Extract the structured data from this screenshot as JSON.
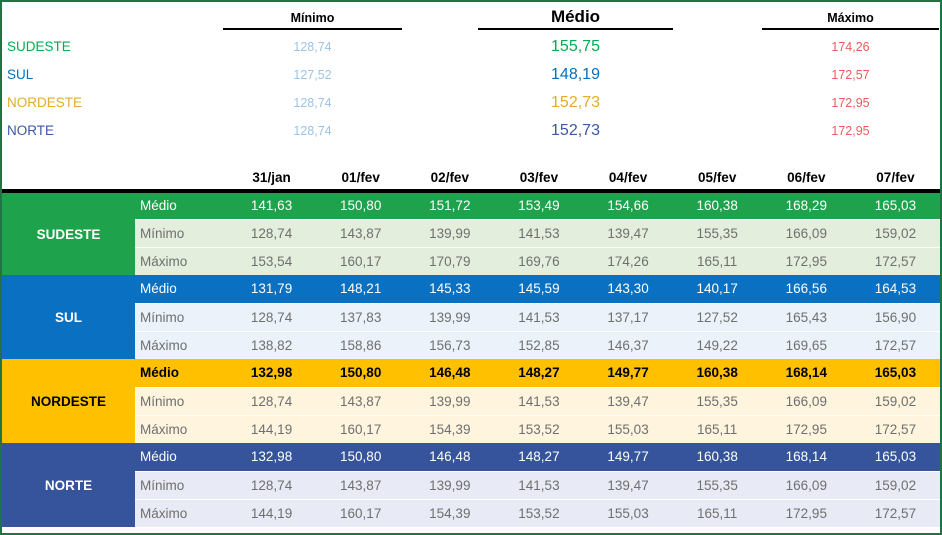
{
  "summary": {
    "headers": {
      "minimo": "Mínimo",
      "medio": "Médio",
      "maximo": "Máximo"
    },
    "rows": [
      {
        "region": "SUDESTE",
        "minimo": "128,74",
        "medio": "155,75",
        "maximo": "174,26"
      },
      {
        "region": "SUL",
        "minimo": "127,52",
        "medio": "148,19",
        "maximo": "172,57"
      },
      {
        "region": "NORDESTE",
        "minimo": "128,74",
        "medio": "152,73",
        "maximo": "172,95"
      },
      {
        "region": "NORTE",
        "minimo": "128,74",
        "medio": "152,73",
        "maximo": "172,95"
      }
    ]
  },
  "table": {
    "date_headers": [
      "31/jan",
      "01/fev",
      "02/fev",
      "03/fev",
      "04/fev",
      "05/fev",
      "06/fev",
      "07/fev"
    ],
    "regions": [
      {
        "name": "SUDESTE",
        "rows": [
          {
            "label": "Médio",
            "values": [
              "141,63",
              "150,80",
              "151,72",
              "153,49",
              "154,66",
              "160,38",
              "168,29",
              "165,03"
            ]
          },
          {
            "label": "Mínimo",
            "values": [
              "128,74",
              "143,87",
              "139,99",
              "141,53",
              "139,47",
              "155,35",
              "166,09",
              "159,02"
            ]
          },
          {
            "label": "Máximo",
            "values": [
              "153,54",
              "160,17",
              "170,79",
              "169,76",
              "174,26",
              "165,11",
              "172,95",
              "172,57"
            ]
          }
        ]
      },
      {
        "name": "SUL",
        "rows": [
          {
            "label": "Médio",
            "values": [
              "131,79",
              "148,21",
              "145,33",
              "145,59",
              "143,30",
              "140,17",
              "166,56",
              "164,53"
            ]
          },
          {
            "label": "Mínimo",
            "values": [
              "128,74",
              "137,83",
              "139,99",
              "141,53",
              "137,17",
              "127,52",
              "165,43",
              "156,90"
            ]
          },
          {
            "label": "Máximo",
            "values": [
              "138,82",
              "158,86",
              "156,73",
              "152,85",
              "146,37",
              "149,22",
              "169,65",
              "172,57"
            ]
          }
        ]
      },
      {
        "name": "NORDESTE",
        "rows": [
          {
            "label": "Médio",
            "values": [
              "132,98",
              "150,80",
              "146,48",
              "148,27",
              "149,77",
              "160,38",
              "168,14",
              "165,03"
            ]
          },
          {
            "label": "Mínimo",
            "values": [
              "128,74",
              "143,87",
              "139,99",
              "141,53",
              "139,47",
              "155,35",
              "166,09",
              "159,02"
            ]
          },
          {
            "label": "Máximo",
            "values": [
              "144,19",
              "160,17",
              "154,39",
              "153,52",
              "155,03",
              "165,11",
              "172,95",
              "172,57"
            ]
          }
        ]
      },
      {
        "name": "NORTE",
        "rows": [
          {
            "label": "Médio",
            "values": [
              "132,98",
              "150,80",
              "146,48",
              "148,27",
              "149,77",
              "160,38",
              "168,14",
              "165,03"
            ]
          },
          {
            "label": "Mínimo",
            "values": [
              "128,74",
              "143,87",
              "139,99",
              "141,53",
              "139,47",
              "155,35",
              "166,09",
              "159,02"
            ]
          },
          {
            "label": "Máximo",
            "values": [
              "144,19",
              "160,17",
              "154,39",
              "153,52",
              "155,03",
              "165,11",
              "172,95",
              "172,57"
            ]
          }
        ]
      }
    ]
  },
  "colors": {
    "frame_green": "#217346",
    "sudeste_fill": "#1EA34C",
    "sudeste_tint": "#E4EEDC",
    "sul_fill": "#0A70C2",
    "sul_tint": "#EBF2FA",
    "nordeste_fill": "#FFC000",
    "nordeste_tint": "#FFF4DE",
    "norte_fill": "#35549B",
    "norte_tint": "#E8EBF5",
    "minimo_value_text": "#9DC3E6",
    "maximo_value_text": "#EF5A5A",
    "muted_text": "#6F6F6F"
  }
}
